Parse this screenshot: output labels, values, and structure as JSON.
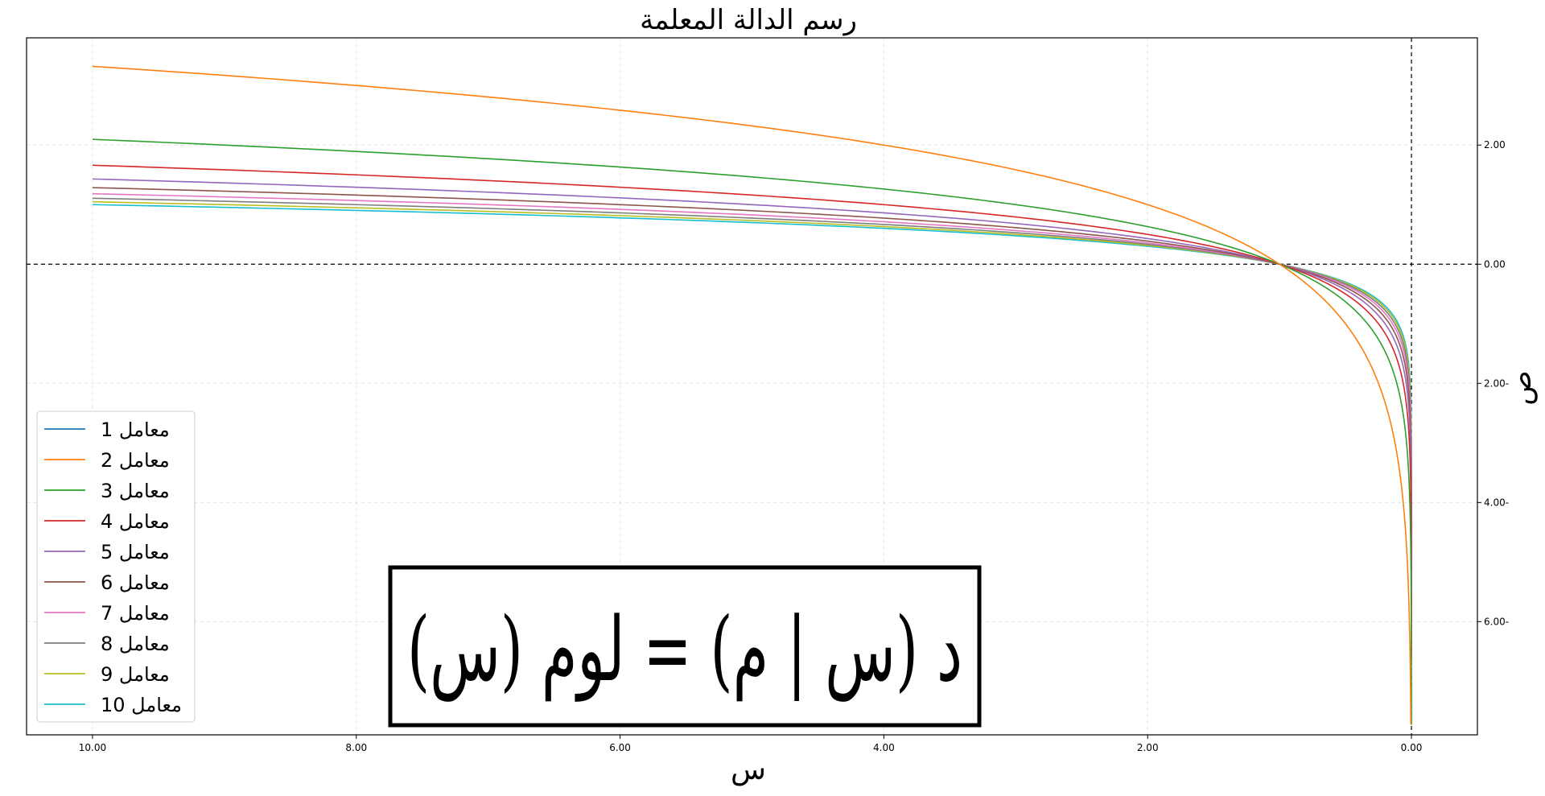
{
  "chart_data": {
    "type": "line",
    "title": "رسم الدالة المعلمة",
    "xlabel": "س",
    "ylabel": "ص",
    "x_axis_inverted": true,
    "y_axis_side": "right",
    "xlim": [
      10.5,
      -0.5
    ],
    "ylim": [
      -7.9,
      3.8
    ],
    "x_ticks": [
      10,
      8,
      6,
      4,
      2,
      0
    ],
    "x_tick_labels": [
      "10.00",
      "8.00",
      "6.00",
      "4.00",
      "2.00",
      "0.00"
    ],
    "y_ticks": [
      2,
      0,
      -2,
      -4,
      -6
    ],
    "y_tick_labels": [
      "2.00",
      "0.00",
      "2.00-",
      "4.00-",
      "6.00-"
    ],
    "grid": true,
    "reference_lines": {
      "y": 0,
      "x": 0,
      "style": "dashed"
    },
    "legend_position": "bottom-left",
    "x_domain": [
      0.0001,
      10
    ],
    "formula": "د (س | م) = لوم (س)",
    "series": [
      {
        "name": "معامل 1",
        "label_num": "1",
        "param": 1,
        "color": "#1f77b4"
      },
      {
        "name": "معامل 2",
        "label_num": "2",
        "param": 2,
        "color": "#ff7f0e"
      },
      {
        "name": "معامل 3",
        "label_num": "3",
        "param": 3,
        "color": "#2ca02c"
      },
      {
        "name": "معامل 4",
        "label_num": "4",
        "param": 4,
        "color": "#d62728"
      },
      {
        "name": "معامل 5",
        "label_num": "5",
        "param": 5,
        "color": "#9467bd"
      },
      {
        "name": "معامل 6",
        "label_num": "6",
        "param": 6,
        "color": "#8c564b"
      },
      {
        "name": "معامل 7",
        "label_num": "7",
        "param": 7,
        "color": "#e377c2"
      },
      {
        "name": "معامل 8",
        "label_num": "8",
        "param": 8,
        "color": "#7f7f7f"
      },
      {
        "name": "معامل 9",
        "label_num": "9",
        "param": 9,
        "color": "#bcbd22"
      },
      {
        "name": "معامل 10",
        "label_num": "10",
        "param": 10,
        "color": "#17becf"
      }
    ]
  }
}
